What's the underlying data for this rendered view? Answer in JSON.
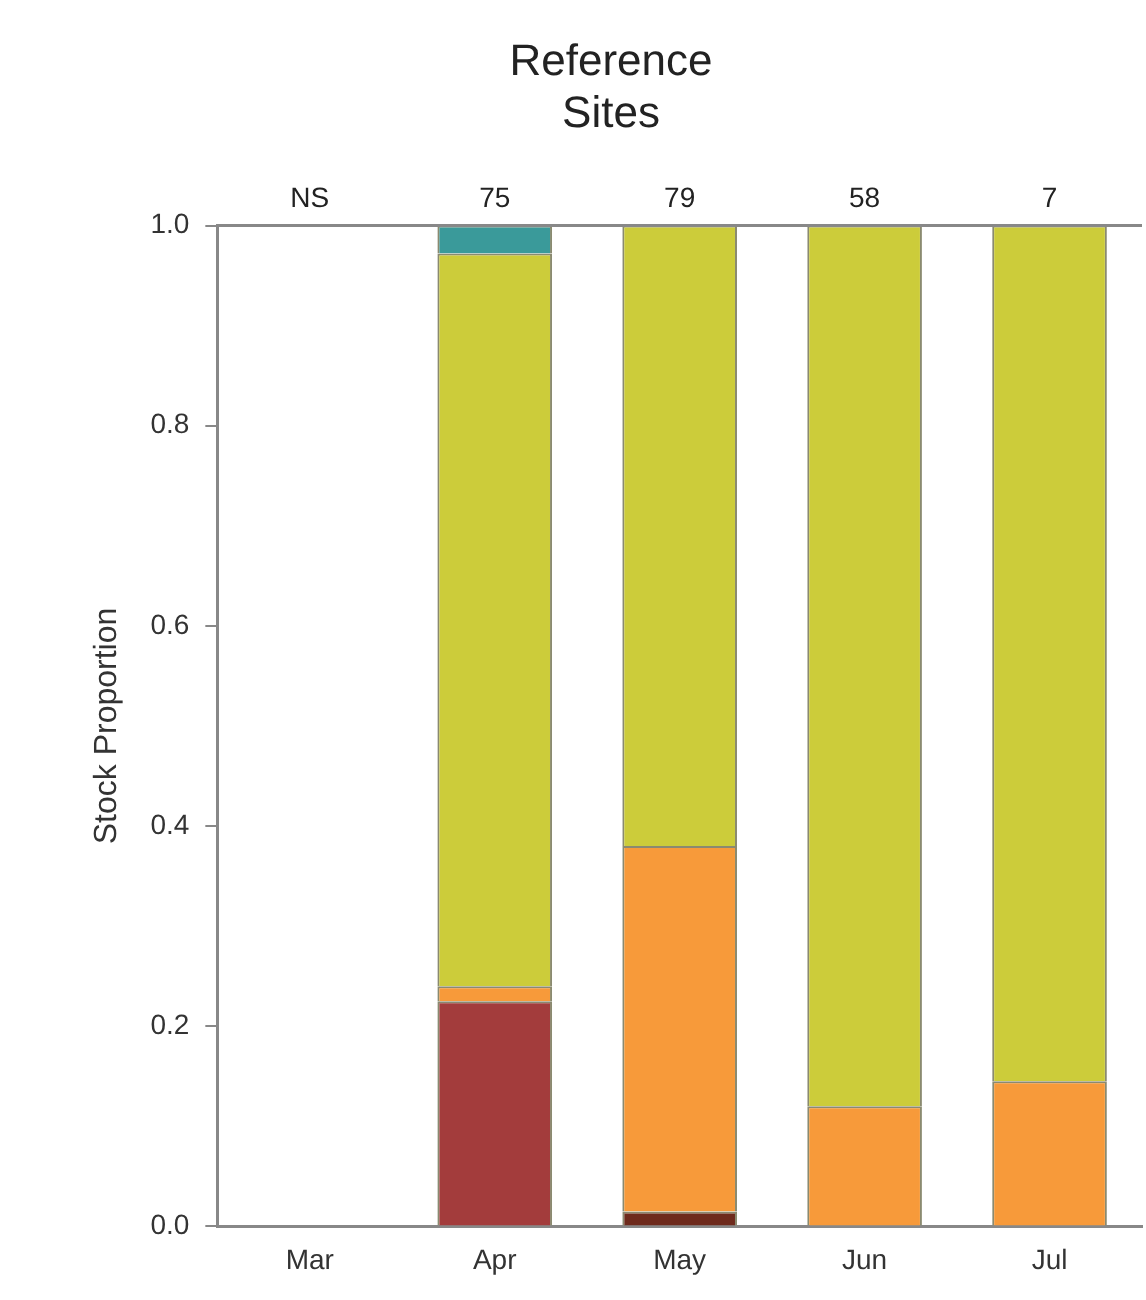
{
  "chart_data": {
    "type": "bar",
    "stacked": true,
    "title": "Reference Sites",
    "ylabel": "Stock Proportion",
    "categories": [
      "Mar",
      "Apr",
      "May",
      "Jun",
      "Jul"
    ],
    "series": [
      {
        "color": "#6e2a1c",
        "values": [
          null,
          0,
          0.015,
          0,
          0
        ]
      },
      {
        "color": "#a33c3c",
        "values": [
          null,
          0.225,
          0,
          0,
          0
        ]
      },
      {
        "color": "#f79a3a",
        "values": [
          null,
          0.015,
          0.365,
          0.12,
          0.145
        ]
      },
      {
        "color": "#cccc3a",
        "values": [
          null,
          0.732,
          0.62,
          0.88,
          0.855
        ]
      },
      {
        "color": "#3a9a9a",
        "values": [
          null,
          0.028,
          0,
          0,
          0
        ]
      }
    ],
    "ylim": [
      0,
      1
    ],
    "yticks": [
      {
        "value": 0,
        "label": "0.0"
      },
      {
        "value": 0.2,
        "label": "0.2"
      },
      {
        "value": 0.4,
        "label": "0.4"
      },
      {
        "value": 0.6,
        "label": "0.6"
      },
      {
        "value": 0.8,
        "label": "0.8"
      },
      {
        "value": 1,
        "label": "1.0"
      }
    ],
    "annotations": [
      "NS",
      "75",
      "79",
      "58",
      "7"
    ],
    "grid": false,
    "legend": false
  }
}
